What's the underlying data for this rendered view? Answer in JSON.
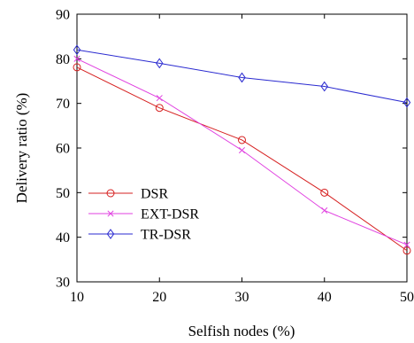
{
  "chart_data": {
    "type": "line",
    "xlabel": "Selfish nodes (%)",
    "ylabel": "Delivery ratio (%)",
    "x": [
      10,
      20,
      30,
      40,
      50
    ],
    "xlim": [
      10,
      50
    ],
    "ylim": [
      30,
      90
    ],
    "xticks": [
      10,
      20,
      30,
      40,
      50
    ],
    "yticks": [
      30,
      40,
      50,
      60,
      70,
      80,
      90
    ],
    "grid": false,
    "legend_position": "lower-left",
    "series": [
      {
        "name": "DSR",
        "values": [
          78.1,
          69.0,
          61.8,
          50.0,
          37.0
        ],
        "color": "#d62020",
        "marker": "circle"
      },
      {
        "name": "EXT-DSR",
        "values": [
          80.0,
          71.2,
          59.5,
          46.0,
          38.3
        ],
        "color": "#e040e0",
        "marker": "x"
      },
      {
        "name": "TR-DSR",
        "values": [
          82.0,
          79.0,
          75.8,
          73.8,
          70.2
        ],
        "color": "#2a2ad0",
        "marker": "diamond"
      }
    ]
  }
}
